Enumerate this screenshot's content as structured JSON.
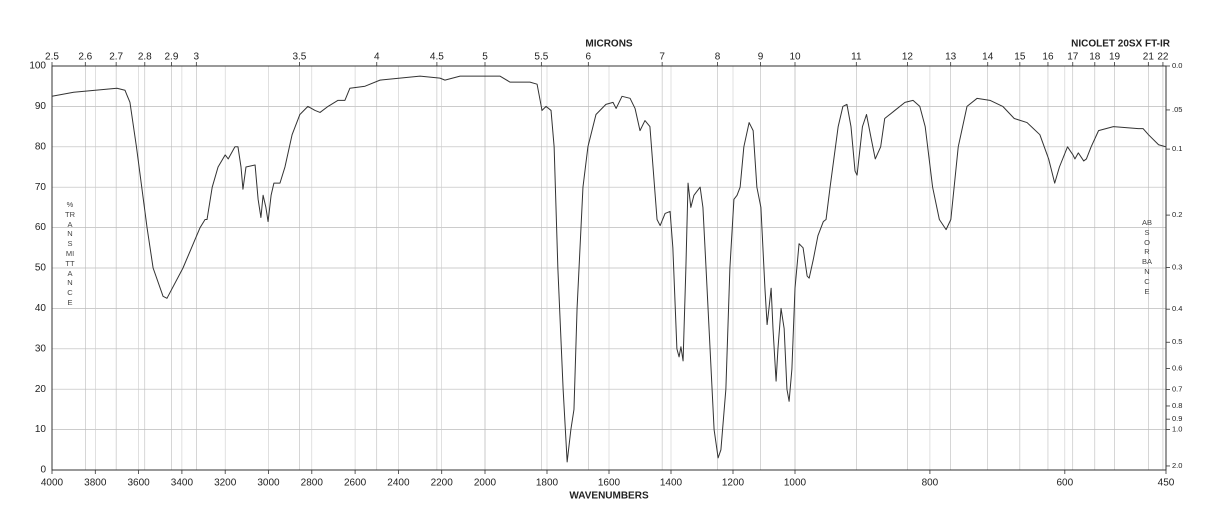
{
  "chart_data": {
    "type": "line",
    "title": "NICOLET 20SX FT-IR",
    "xlabel": "WAVENUMBERS",
    "x2label": "MICRONS",
    "ylabel": "%TRANSMITTANCE",
    "y2label": "ABSORBANCE",
    "color": "#333333",
    "grid": true,
    "xscale_breaks": [
      2000,
      1000
    ],
    "xlim": [
      4000,
      450
    ],
    "xticks": [
      4000,
      3800,
      3600,
      3400,
      3200,
      3000,
      2800,
      2600,
      2400,
      2200,
      2000,
      1800,
      1600,
      1400,
      1200,
      1000,
      800,
      600,
      450
    ],
    "x2ticks": [
      2.5,
      2.6,
      2.7,
      2.8,
      2.9,
      3,
      3.5,
      4,
      4.5,
      5,
      5.5,
      6,
      7,
      8,
      9,
      10,
      11,
      12,
      13,
      14,
      15,
      16,
      17,
      18,
      19,
      21,
      22
    ],
    "ylim": [
      0,
      100
    ],
    "yticks": [
      0,
      10,
      20,
      30,
      40,
      50,
      60,
      70,
      80,
      90,
      100
    ],
    "y2ticks": [
      {
        "value": 0,
        "label": "0.0"
      },
      {
        "value": 0.05,
        "label": ".05"
      },
      0.1,
      0.2,
      0.3,
      0.4,
      0.5,
      0.6,
      0.7,
      0.8,
      0.9,
      {
        "value": 1,
        "label": "1.0"
      },
      {
        "value": 2,
        "label": "2.0"
      }
    ],
    "x": [
      4000,
      3900,
      3800,
      3700,
      3663,
      3640,
      3610,
      3561,
      3533,
      3487,
      3469,
      3395,
      3316,
      3293,
      3284,
      3260,
      3233,
      3200,
      3186,
      3155,
      3141,
      3127,
      3118,
      3104,
      3062,
      3048,
      3035,
      3025,
      3012,
      3002,
      2988,
      2975,
      2947,
      2924,
      2891,
      2855,
      2818,
      2785,
      2762,
      2725,
      2679,
      2647,
      2624,
      2554,
      2485,
      2393,
      2300,
      2208,
      2185,
      2115,
      1952,
      1919,
      1855,
      1832,
      1816,
      1803,
      1787,
      1777,
      1765,
      1748,
      1735,
      1723,
      1713,
      1703,
      1684,
      1668,
      1642,
      1610,
      1587,
      1577,
      1558,
      1532,
      1516,
      1500,
      1484,
      1468,
      1458,
      1445,
      1435,
      1419,
      1403,
      1394,
      1381,
      1374,
      1368,
      1361,
      1352,
      1345,
      1336,
      1326,
      1316,
      1306,
      1297,
      1287,
      1274,
      1261,
      1248,
      1239,
      1223,
      1210,
      1197,
      1187,
      1177,
      1165,
      1148,
      1135,
      1123,
      1110,
      1097,
      1090,
      1084,
      1077,
      1071,
      1061,
      1055,
      1045,
      1035,
      1026,
      1019,
      1010,
      1000,
      994,
      988,
      982,
      979,
      973,
      966,
      958,
      954,
      948,
      936,
      929,
      923,
      917,
      911,
      908,
      900,
      894,
      887,
      881,
      873,
      867,
      852,
      837,
      825,
      815,
      807,
      796,
      786,
      776,
      769,
      758,
      745,
      730,
      711,
      692,
      675,
      656,
      637,
      624,
      615,
      608,
      596,
      588,
      585,
      580,
      572,
      568,
      561,
      550,
      528,
      491,
      484,
      476,
      461,
      450
    ],
    "values": [
      92.5,
      93.5,
      94,
      94.5,
      94,
      91,
      80,
      60,
      50,
      43,
      42.5,
      50,
      60,
      62,
      62,
      70,
      75,
      78,
      77,
      80,
      80,
      75,
      69.5,
      75,
      75.5,
      67,
      62.5,
      68,
      65,
      61.5,
      68,
      71,
      71,
      75,
      83,
      88,
      90,
      89,
      88.5,
      90,
      91.5,
      91.5,
      94.5,
      95,
      96.5,
      97,
      97.5,
      97,
      96.5,
      97.5,
      97.5,
      96,
      96,
      95.5,
      89,
      90,
      89,
      80,
      50,
      20,
      2,
      10,
      15,
      40,
      70,
      80,
      88,
      90.5,
      91,
      89.5,
      92.5,
      92,
      89.5,
      84,
      86.5,
      85,
      75,
      62,
      60.5,
      63.5,
      64,
      55,
      30,
      28,
      30.5,
      27,
      50,
      71,
      65,
      68,
      69,
      70,
      65,
      50,
      30,
      10,
      3,
      5,
      20,
      50,
      67,
      68,
      70,
      80,
      86,
      84,
      70,
      65,
      45,
      36,
      40,
      45,
      35,
      22,
      30,
      40,
      35,
      20,
      17,
      25,
      45,
      56,
      55,
      48,
      47.5,
      52,
      58,
      61.5,
      62,
      70,
      85,
      90,
      90.5,
      85,
      74,
      73,
      85,
      88,
      82,
      77,
      80,
      87,
      89,
      91,
      91.5,
      90,
      85,
      70,
      62,
      59.5,
      62,
      80,
      90,
      92,
      91.5,
      90,
      87,
      86,
      83,
      77,
      71,
      75,
      80,
      78,
      77,
      78.5,
      76.5,
      77,
      80,
      84,
      85,
      84.5,
      84.5,
      83,
      80.5,
      80
    ]
  }
}
